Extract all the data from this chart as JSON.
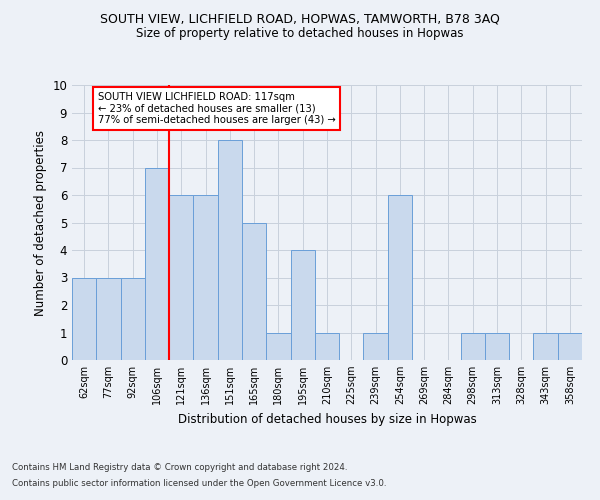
{
  "title1": "SOUTH VIEW, LICHFIELD ROAD, HOPWAS, TAMWORTH, B78 3AQ",
  "title2": "Size of property relative to detached houses in Hopwas",
  "xlabel": "Distribution of detached houses by size in Hopwas",
  "ylabel": "Number of detached properties",
  "categories": [
    "62sqm",
    "77sqm",
    "92sqm",
    "106sqm",
    "121sqm",
    "136sqm",
    "151sqm",
    "165sqm",
    "180sqm",
    "195sqm",
    "210sqm",
    "225sqm",
    "239sqm",
    "254sqm",
    "269sqm",
    "284sqm",
    "298sqm",
    "313sqm",
    "328sqm",
    "343sqm",
    "358sqm"
  ],
  "values": [
    3,
    3,
    3,
    7,
    6,
    6,
    8,
    5,
    1,
    4,
    1,
    0,
    1,
    6,
    0,
    0,
    1,
    1,
    0,
    1,
    1
  ],
  "bar_color": "#c9d9ed",
  "bar_edge_color": "#6a9fd8",
  "grid_color": "#c8d0dc",
  "subject_line_color": "red",
  "subject_line_index": 3,
  "annotation_title": "SOUTH VIEW LICHFIELD ROAD: 117sqm",
  "annotation_line1": "← 23% of detached houses are smaller (13)",
  "annotation_line2": "77% of semi-detached houses are larger (43) →",
  "annotation_box_color": "white",
  "annotation_box_edge": "red",
  "ylim": [
    0,
    10
  ],
  "yticks": [
    0,
    1,
    2,
    3,
    4,
    5,
    6,
    7,
    8,
    9,
    10
  ],
  "footnote1": "Contains HM Land Registry data © Crown copyright and database right 2024.",
  "footnote2": "Contains public sector information licensed under the Open Government Licence v3.0.",
  "bg_color": "#edf1f7"
}
